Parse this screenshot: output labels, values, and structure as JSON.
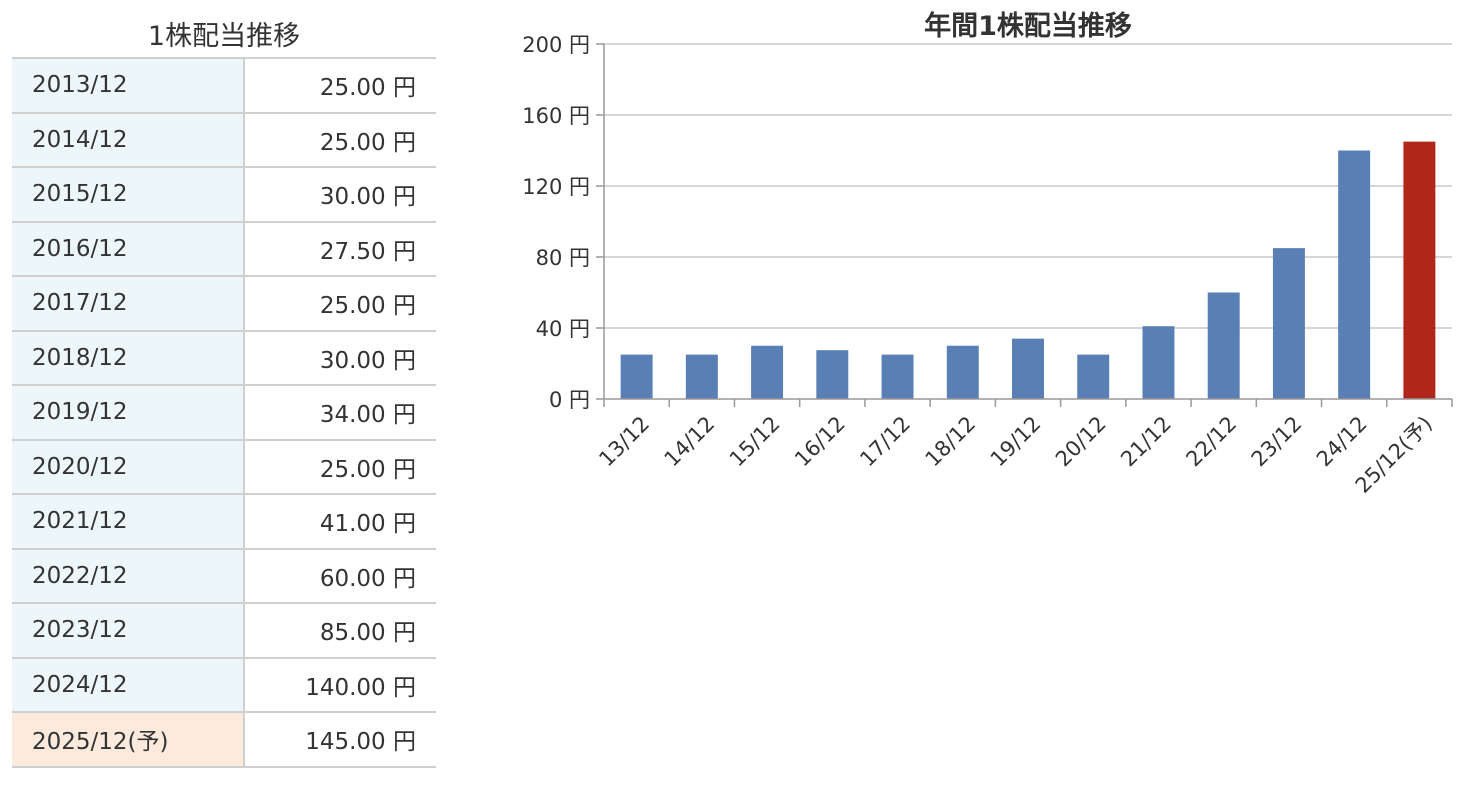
{
  "table": {
    "title": "1株配当推移",
    "rows": [
      {
        "period": "2013/12",
        "amount": "25.00 円",
        "forecast": false
      },
      {
        "period": "2014/12",
        "amount": "25.00 円",
        "forecast": false
      },
      {
        "period": "2015/12",
        "amount": "30.00 円",
        "forecast": false
      },
      {
        "period": "2016/12",
        "amount": "27.50 円",
        "forecast": false
      },
      {
        "period": "2017/12",
        "amount": "25.00 円",
        "forecast": false
      },
      {
        "period": "2018/12",
        "amount": "30.00 円",
        "forecast": false
      },
      {
        "period": "2019/12",
        "amount": "34.00 円",
        "forecast": false
      },
      {
        "period": "2020/12",
        "amount": "25.00 円",
        "forecast": false
      },
      {
        "period": "2021/12",
        "amount": "41.00 円",
        "forecast": false
      },
      {
        "period": "2022/12",
        "amount": "60.00 円",
        "forecast": false
      },
      {
        "period": "2023/12",
        "amount": "85.00 円",
        "forecast": false
      },
      {
        "period": "2024/12",
        "amount": "140.00 円",
        "forecast": false
      },
      {
        "period": "2025/12(予)",
        "amount": "145.00 円",
        "forecast": true
      }
    ],
    "colors": {
      "period_bg": "#edf6f9",
      "forecast_bg": "#fcebdc",
      "border": "#cfcfcf"
    }
  },
  "chart_data": {
    "type": "bar",
    "title": "年間1株配当推移",
    "categories": [
      "13/12",
      "14/12",
      "15/12",
      "16/12",
      "17/12",
      "18/12",
      "19/12",
      "20/12",
      "21/12",
      "22/12",
      "23/12",
      "24/12",
      "25/12(予)"
    ],
    "values": [
      25,
      25,
      30,
      27.5,
      25,
      30,
      34,
      25,
      41,
      60,
      85,
      140,
      145
    ],
    "forecast_flags": [
      false,
      false,
      false,
      false,
      false,
      false,
      false,
      false,
      false,
      false,
      false,
      false,
      true
    ],
    "ylim": [
      0,
      200
    ],
    "yticks": [
      0,
      40,
      80,
      120,
      160,
      200
    ],
    "ytick_labels": [
      "0 円",
      "40 円",
      "80 円",
      "120 円",
      "160 円",
      "200 円"
    ],
    "xlabel": "",
    "ylabel": "",
    "grid": true,
    "colors": {
      "actual": "#5a7fb5",
      "forecast": "#b0261b",
      "grid": "#c8c8c8"
    }
  }
}
